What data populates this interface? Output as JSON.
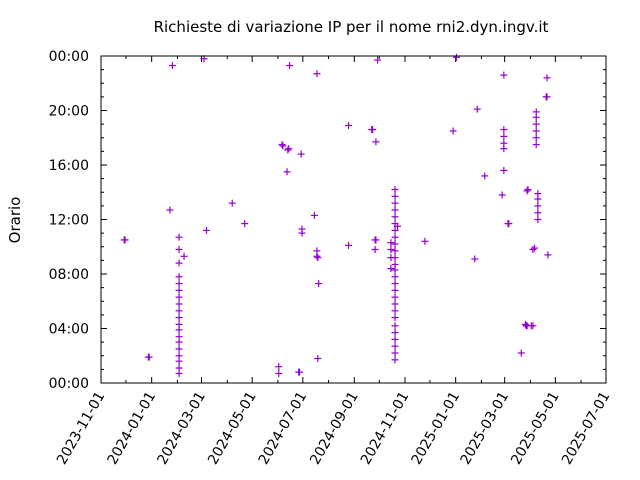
{
  "chart_data": {
    "type": "scatter",
    "title": "Richieste di variazione IP per il nome rni2.dyn.ingv.it",
    "xlabel": "",
    "ylabel": "Orario",
    "x_type": "date",
    "xlim": [
      "2023-11-01",
      "2025-07-01"
    ],
    "ylim": [
      0,
      24
    ],
    "x_ticks": [
      "2023-11-01",
      "2024-01-01",
      "2024-03-01",
      "2024-05-01",
      "2024-07-01",
      "2024-09-01",
      "2024-11-01",
      "2025-01-01",
      "2025-03-01",
      "2025-05-01",
      "2025-07-01"
    ],
    "y_ticks": [
      {
        "v": 0,
        "label": "00:00"
      },
      {
        "v": 4,
        "label": "04:00"
      },
      {
        "v": 8,
        "label": "08:00"
      },
      {
        "v": 12,
        "label": "12:00"
      },
      {
        "v": 16,
        "label": "16:00"
      },
      {
        "v": 20,
        "label": "20:00"
      },
      {
        "v": 24,
        "label": "00:00"
      }
    ],
    "grid": false,
    "marker": "plus",
    "color": "#9400d3",
    "points": [
      [
        "2023-11-29",
        10.5
      ],
      [
        "2023-11-30",
        10.5
      ],
      [
        "2023-12-28",
        1.9
      ],
      [
        "2023-12-29",
        1.9
      ],
      [
        "2024-01-23",
        12.7
      ],
      [
        "2024-01-26",
        23.3
      ],
      [
        "2024-02-03",
        0.7
      ],
      [
        "2024-02-03",
        1.1
      ],
      [
        "2024-02-03",
        1.6
      ],
      [
        "2024-02-03",
        2.0
      ],
      [
        "2024-02-03",
        2.5
      ],
      [
        "2024-02-03",
        3.0
      ],
      [
        "2024-02-03",
        3.4
      ],
      [
        "2024-02-03",
        3.9
      ],
      [
        "2024-02-03",
        4.3
      ],
      [
        "2024-02-03",
        4.8
      ],
      [
        "2024-02-03",
        5.3
      ],
      [
        "2024-02-03",
        5.8
      ],
      [
        "2024-02-03",
        6.3
      ],
      [
        "2024-02-03",
        6.8
      ],
      [
        "2024-02-03",
        7.3
      ],
      [
        "2024-02-03",
        7.8
      ],
      [
        "2024-02-03",
        8.8
      ],
      [
        "2024-02-03",
        9.8
      ],
      [
        "2024-02-03",
        10.7
      ],
      [
        "2024-02-09",
        9.3
      ],
      [
        "2024-03-04",
        23.8
      ],
      [
        "2024-03-07",
        11.2
      ],
      [
        "2024-04-07",
        13.2
      ],
      [
        "2024-04-22",
        11.7
      ],
      [
        "2024-06-02",
        0.7
      ],
      [
        "2024-06-02",
        1.2
      ],
      [
        "2024-06-06",
        17.5
      ],
      [
        "2024-06-07",
        17.4
      ],
      [
        "2024-06-12",
        15.5
      ],
      [
        "2024-06-13",
        17.1
      ],
      [
        "2024-06-14",
        17.2
      ],
      [
        "2024-06-15",
        23.3
      ],
      [
        "2024-06-26",
        0.8
      ],
      [
        "2024-06-27",
        0.8
      ],
      [
        "2024-06-29",
        16.8
      ],
      [
        "2024-06-30",
        11.0
      ],
      [
        "2024-06-30",
        11.3
      ],
      [
        "2024-07-15",
        12.3
      ],
      [
        "2024-07-18",
        9.3
      ],
      [
        "2024-07-19",
        9.2
      ],
      [
        "2024-07-18",
        9.7
      ],
      [
        "2024-07-19",
        1.8
      ],
      [
        "2024-07-20",
        7.3
      ],
      [
        "2024-07-18",
        22.7
      ],
      [
        "2024-08-25",
        18.9
      ],
      [
        "2024-08-25",
        10.1
      ],
      [
        "2024-09-22",
        18.6
      ],
      [
        "2024-09-23",
        18.6
      ],
      [
        "2024-09-26",
        9.8
      ],
      [
        "2024-09-26",
        10.5
      ],
      [
        "2024-09-27",
        10.5
      ],
      [
        "2024-09-27",
        17.7
      ],
      [
        "2024-09-29",
        23.7
      ],
      [
        "2024-10-15",
        8.4
      ],
      [
        "2024-10-15",
        9.2
      ],
      [
        "2024-10-15",
        9.8
      ],
      [
        "2024-10-15",
        10.3
      ],
      [
        "2024-10-20",
        1.7
      ],
      [
        "2024-10-20",
        2.2
      ],
      [
        "2024-10-20",
        2.7
      ],
      [
        "2024-10-20",
        3.2
      ],
      [
        "2024-10-20",
        3.7
      ],
      [
        "2024-10-20",
        4.2
      ],
      [
        "2024-10-20",
        4.8
      ],
      [
        "2024-10-20",
        5.3
      ],
      [
        "2024-10-20",
        5.8
      ],
      [
        "2024-10-20",
        6.3
      ],
      [
        "2024-10-20",
        6.8
      ],
      [
        "2024-10-20",
        7.3
      ],
      [
        "2024-10-20",
        7.8
      ],
      [
        "2024-10-20",
        8.3
      ],
      [
        "2024-10-20",
        8.7
      ],
      [
        "2024-10-20",
        9.2
      ],
      [
        "2024-10-20",
        9.7
      ],
      [
        "2024-10-20",
        10.2
      ],
      [
        "2024-10-20",
        10.7
      ],
      [
        "2024-10-20",
        11.2
      ],
      [
        "2024-10-20",
        11.7
      ],
      [
        "2024-10-20",
        12.2
      ],
      [
        "2024-10-20",
        12.7
      ],
      [
        "2024-10-20",
        13.2
      ],
      [
        "2024-10-20",
        13.7
      ],
      [
        "2024-10-20",
        14.2
      ],
      [
        "2024-10-23",
        11.5
      ],
      [
        "2024-11-25",
        10.4
      ],
      [
        "2024-12-29",
        18.5
      ],
      [
        "2025-01-02",
        23.9
      ],
      [
        "2025-01-24",
        9.1
      ],
      [
        "2025-01-27",
        20.1
      ],
      [
        "2025-02-05",
        15.2
      ],
      [
        "2025-02-26",
        13.8
      ],
      [
        "2025-02-28",
        15.6
      ],
      [
        "2025-02-28",
        17.2
      ],
      [
        "2025-02-28",
        17.6
      ],
      [
        "2025-02-28",
        18.1
      ],
      [
        "2025-02-28",
        18.6
      ],
      [
        "2025-02-28",
        22.6
      ],
      [
        "2025-03-05",
        11.7
      ],
      [
        "2025-03-06",
        11.7
      ],
      [
        "2025-03-21",
        2.2
      ],
      [
        "2025-03-26",
        4.3
      ],
      [
        "2025-03-27",
        4.2
      ],
      [
        "2025-03-28",
        4.2
      ],
      [
        "2025-04-02",
        4.2
      ],
      [
        "2025-04-04",
        4.2
      ],
      [
        "2025-03-28",
        14.1
      ],
      [
        "2025-03-29",
        14.2
      ],
      [
        "2025-04-04",
        9.8
      ],
      [
        "2025-04-06",
        9.9
      ],
      [
        "2025-04-10",
        12.0
      ],
      [
        "2025-04-10",
        12.5
      ],
      [
        "2025-04-10",
        13.0
      ],
      [
        "2025-04-10",
        13.5
      ],
      [
        "2025-04-10",
        13.9
      ],
      [
        "2025-04-08",
        17.5
      ],
      [
        "2025-04-08",
        18.0
      ],
      [
        "2025-04-08",
        18.5
      ],
      [
        "2025-04-08",
        19.0
      ],
      [
        "2025-04-08",
        19.5
      ],
      [
        "2025-04-08",
        19.9
      ],
      [
        "2025-04-20",
        21.0
      ],
      [
        "2025-04-21",
        21.0
      ],
      [
        "2025-04-21",
        22.4
      ],
      [
        "2025-04-22",
        9.4
      ]
    ]
  }
}
